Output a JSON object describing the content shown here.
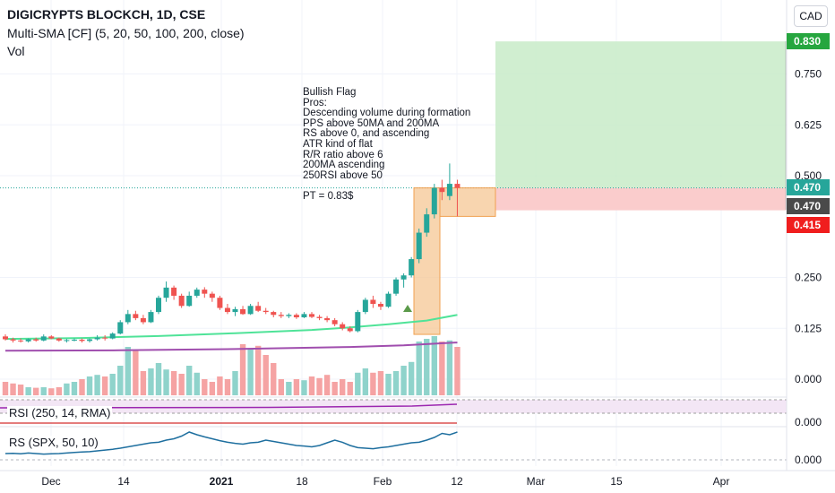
{
  "header": {
    "symbol_line": "DIGICRYPTS BLOCKCH, 1D, CSE",
    "sma_line": "Multi-SMA [CF] (5, 20, 50, 100, 200, close)",
    "vol_line": "Vol",
    "currency_button": "CAD"
  },
  "annotation": {
    "text": "Bullish Flag\nPros:\nDescending volume during formation\nPPS above 50MA and 200MA\nRS above 0, and ascending\nATR kind of flat\nR/R ratio above 6\n200MA ascending\n250RSI above 50\n\nPT = 0.83$"
  },
  "indicators": {
    "rsi_label": "RSI (250, 14, RMA)",
    "rs_label": "RS (SPX, 50, 10)"
  },
  "colors": {
    "up": "#26a69a",
    "down": "#ef5350",
    "vol_up": "#8fd3cb",
    "vol_down": "#f5a3a3",
    "sma50": "#4fe398",
    "sma200": "#a04eae",
    "rs_line": "#1e6f9f",
    "rsi_line": "#9c27b0",
    "target_zone": "#c8ebc8",
    "stop_zone": "#f9c6c6",
    "flag_box": "#f6c794",
    "label_target": "#26a63f",
    "label_current": "#26a69a",
    "label_entry": "#4a4a4a",
    "label_stop": "#f01e1e"
  },
  "chart_data": {
    "type": "candlestick",
    "x_ticks": [
      "Dec",
      "14",
      "2021",
      "18",
      "Feb",
      "12",
      "Mar",
      "15",
      "Apr"
    ],
    "price_axis_ticks": [
      "0.750",
      "0.625",
      "0.500",
      "0.250",
      "0.125",
      "0.000"
    ],
    "rsi_axis_ticks": [
      "0.000"
    ],
    "rs_axis_ticks": [
      "0.000"
    ],
    "price_labels": [
      {
        "text": "0.830",
        "role": "target"
      },
      {
        "text": "0.470",
        "role": "current"
      },
      {
        "text": "0.470",
        "role": "entry"
      },
      {
        "text": "0.415",
        "role": "stop"
      }
    ],
    "candles": [
      [
        0.105,
        0.11,
        0.095,
        0.098
      ],
      [
        0.098,
        0.102,
        0.09,
        0.095
      ],
      [
        0.095,
        0.1,
        0.09,
        0.093
      ],
      [
        0.093,
        0.1,
        0.09,
        0.098
      ],
      [
        0.098,
        0.102,
        0.092,
        0.095
      ],
      [
        0.095,
        0.11,
        0.093,
        0.105
      ],
      [
        0.105,
        0.108,
        0.098,
        0.1
      ],
      [
        0.1,
        0.102,
        0.092,
        0.095
      ],
      [
        0.095,
        0.099,
        0.09,
        0.096
      ],
      [
        0.096,
        0.1,
        0.093,
        0.097
      ],
      [
        0.097,
        0.1,
        0.09,
        0.094
      ],
      [
        0.094,
        0.1,
        0.09,
        0.098
      ],
      [
        0.098,
        0.108,
        0.095,
        0.102
      ],
      [
        0.102,
        0.108,
        0.095,
        0.1
      ],
      [
        0.1,
        0.115,
        0.098,
        0.112
      ],
      [
        0.112,
        0.145,
        0.11,
        0.14
      ],
      [
        0.14,
        0.17,
        0.135,
        0.16
      ],
      [
        0.16,
        0.168,
        0.145,
        0.15
      ],
      [
        0.15,
        0.158,
        0.135,
        0.14
      ],
      [
        0.14,
        0.17,
        0.138,
        0.165
      ],
      [
        0.165,
        0.205,
        0.16,
        0.2
      ],
      [
        0.2,
        0.24,
        0.19,
        0.225
      ],
      [
        0.225,
        0.23,
        0.195,
        0.205
      ],
      [
        0.205,
        0.21,
        0.175,
        0.18
      ],
      [
        0.18,
        0.215,
        0.178,
        0.205
      ],
      [
        0.205,
        0.225,
        0.2,
        0.22
      ],
      [
        0.22,
        0.226,
        0.2,
        0.21
      ],
      [
        0.21,
        0.215,
        0.19,
        0.2
      ],
      [
        0.2,
        0.205,
        0.17,
        0.175
      ],
      [
        0.175,
        0.185,
        0.16,
        0.165
      ],
      [
        0.165,
        0.178,
        0.155,
        0.172
      ],
      [
        0.172,
        0.18,
        0.158,
        0.16
      ],
      [
        0.16,
        0.185,
        0.158,
        0.18
      ],
      [
        0.18,
        0.19,
        0.165,
        0.168
      ],
      [
        0.168,
        0.175,
        0.16,
        0.165
      ],
      [
        0.165,
        0.168,
        0.152,
        0.158
      ],
      [
        0.158,
        0.165,
        0.15,
        0.155
      ],
      [
        0.155,
        0.162,
        0.15,
        0.158
      ],
      [
        0.158,
        0.162,
        0.148,
        0.152
      ],
      [
        0.152,
        0.165,
        0.15,
        0.16
      ],
      [
        0.16,
        0.165,
        0.15,
        0.153
      ],
      [
        0.153,
        0.158,
        0.145,
        0.15
      ],
      [
        0.15,
        0.155,
        0.14,
        0.145
      ],
      [
        0.145,
        0.15,
        0.13,
        0.135
      ],
      [
        0.135,
        0.14,
        0.12,
        0.125
      ],
      [
        0.125,
        0.13,
        0.115,
        0.118
      ],
      [
        0.118,
        0.17,
        0.115,
        0.165
      ],
      [
        0.165,
        0.2,
        0.16,
        0.195
      ],
      [
        0.195,
        0.205,
        0.175,
        0.185
      ],
      [
        0.185,
        0.19,
        0.17,
        0.178
      ],
      [
        0.178,
        0.215,
        0.175,
        0.21
      ],
      [
        0.21,
        0.25,
        0.205,
        0.245
      ],
      [
        0.245,
        0.26,
        0.225,
        0.255
      ],
      [
        0.255,
        0.3,
        0.25,
        0.295
      ],
      [
        0.295,
        0.37,
        0.285,
        0.36
      ],
      [
        0.36,
        0.42,
        0.35,
        0.405
      ],
      [
        0.405,
        0.48,
        0.395,
        0.47
      ],
      [
        0.47,
        0.49,
        0.44,
        0.46
      ],
      [
        0.45,
        0.53,
        0.44,
        0.48
      ],
      [
        0.48,
        0.49,
        0.4,
        0.47
      ]
    ],
    "volume_relative": [
      0.25,
      0.22,
      0.2,
      0.15,
      0.14,
      0.15,
      0.13,
      0.15,
      0.22,
      0.25,
      0.3,
      0.35,
      0.38,
      0.35,
      0.4,
      0.55,
      0.9,
      0.85,
      0.45,
      0.5,
      0.6,
      0.48,
      0.45,
      0.4,
      0.55,
      0.42,
      0.3,
      0.25,
      0.35,
      0.3,
      0.45,
      0.95,
      0.85,
      0.92,
      0.75,
      0.6,
      0.3,
      0.25,
      0.3,
      0.28,
      0.35,
      0.32,
      0.38,
      0.25,
      0.3,
      0.25,
      0.42,
      0.5,
      0.42,
      0.45,
      0.4,
      0.45,
      0.55,
      0.62,
      1.0,
      1.05,
      1.1,
      1.0,
      1.02,
      0.9
    ],
    "sma50": [
      [
        0,
        0.099
      ],
      [
        10,
        0.101
      ],
      [
        20,
        0.106
      ],
      [
        30,
        0.113
      ],
      [
        40,
        0.121
      ],
      [
        45,
        0.127
      ],
      [
        50,
        0.135
      ],
      [
        55,
        0.144
      ],
      [
        59,
        0.158
      ]
    ],
    "sma200": [
      [
        0,
        0.07
      ],
      [
        15,
        0.071
      ],
      [
        30,
        0.074
      ],
      [
        45,
        0.079
      ],
      [
        52,
        0.083
      ],
      [
        59,
        0.09
      ]
    ],
    "rs_line": [
      0.2,
      0.21,
      0.19,
      0.22,
      0.2,
      0.18,
      0.19,
      0.2,
      0.22,
      0.24,
      0.26,
      0.27,
      0.3,
      0.33,
      0.36,
      0.4,
      0.45,
      0.5,
      0.55,
      0.6,
      0.62,
      0.7,
      0.75,
      0.85,
      1.0,
      0.9,
      0.82,
      0.75,
      0.68,
      0.62,
      0.58,
      0.55,
      0.6,
      0.62,
      0.7,
      0.65,
      0.6,
      0.55,
      0.5,
      0.48,
      0.45,
      0.5,
      0.6,
      0.7,
      0.62,
      0.5,
      0.42,
      0.4,
      0.38,
      0.42,
      0.45,
      0.5,
      0.55,
      0.6,
      0.62,
      0.7,
      0.8,
      0.95,
      0.9,
      1.0
    ],
    "trade_zones": {
      "target_price": 0.83,
      "entry_price": 0.47,
      "stop_price": 0.415
    },
    "flag_box": {
      "pole_price_range": [
        0.11,
        0.47
      ],
      "flag_price_range": [
        0.4,
        0.47
      ]
    }
  }
}
